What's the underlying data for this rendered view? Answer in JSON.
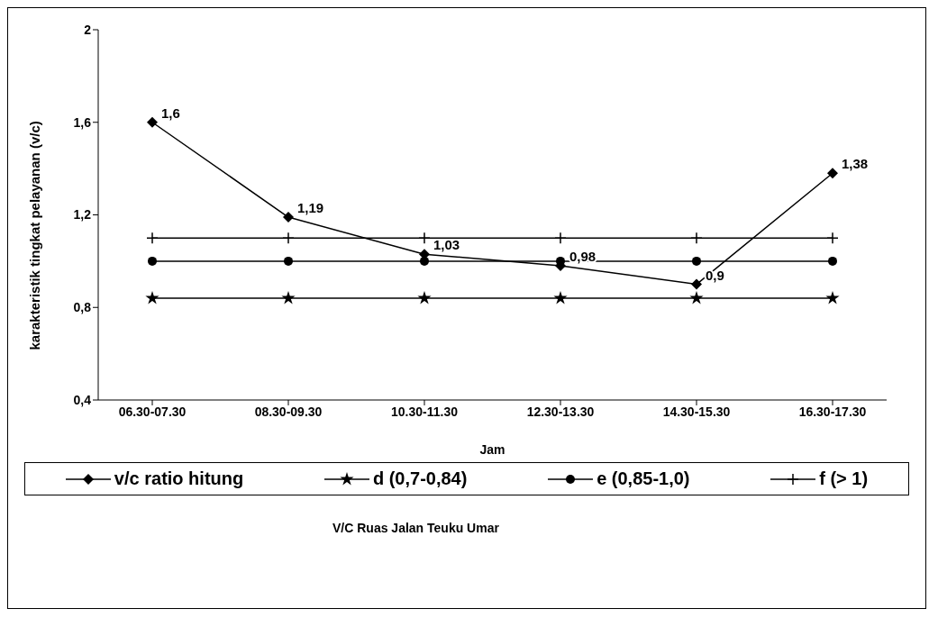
{
  "chart_data": {
    "type": "line",
    "xlabel": "Jam",
    "ylabel": "karakteristik tingkat pelayanan (v/c)",
    "categories": [
      "06.30-07.30",
      "08.30-09.30",
      "10.30-11.30",
      "12.30-13.30",
      "14.30-15.30",
      "16.30-17.30"
    ],
    "series": [
      {
        "name": "v/c ratio hitung",
        "color": "#000000",
        "marker": "diamond",
        "values": [
          1.6,
          1.19,
          1.03,
          0.98,
          0.9,
          1.38
        ],
        "value_labels": [
          "1,6",
          "1,19",
          "1,03",
          "0,98",
          "0,9",
          "1,38"
        ]
      },
      {
        "name": "d (0,7-0,84)",
        "color": "#000000",
        "marker": "star",
        "values": [
          0.84,
          0.84,
          0.84,
          0.84,
          0.84,
          0.84
        ]
      },
      {
        "name": "e (0,85-1,0)",
        "color": "#000000",
        "marker": "circle",
        "values": [
          1.0,
          1.0,
          1.0,
          1.0,
          1.0,
          1.0
        ]
      },
      {
        "name": "f (> 1)",
        "color": "#000000",
        "marker": "cross",
        "values": [
          1.1,
          1.1,
          1.1,
          1.1,
          1.1,
          1.1
        ]
      }
    ],
    "ylim": [
      0.4,
      2
    ],
    "yticks": [
      {
        "value": 0.4,
        "label": "0,4"
      },
      {
        "value": 0.8,
        "label": "0,8"
      },
      {
        "value": 1.2,
        "label": "1,2"
      },
      {
        "value": 1.6,
        "label": "1,6"
      },
      {
        "value": 2,
        "label": "2"
      }
    ],
    "legend": "bottom",
    "annotations": [
      "V/C Ruas Jalan Teuku Umar"
    ]
  }
}
